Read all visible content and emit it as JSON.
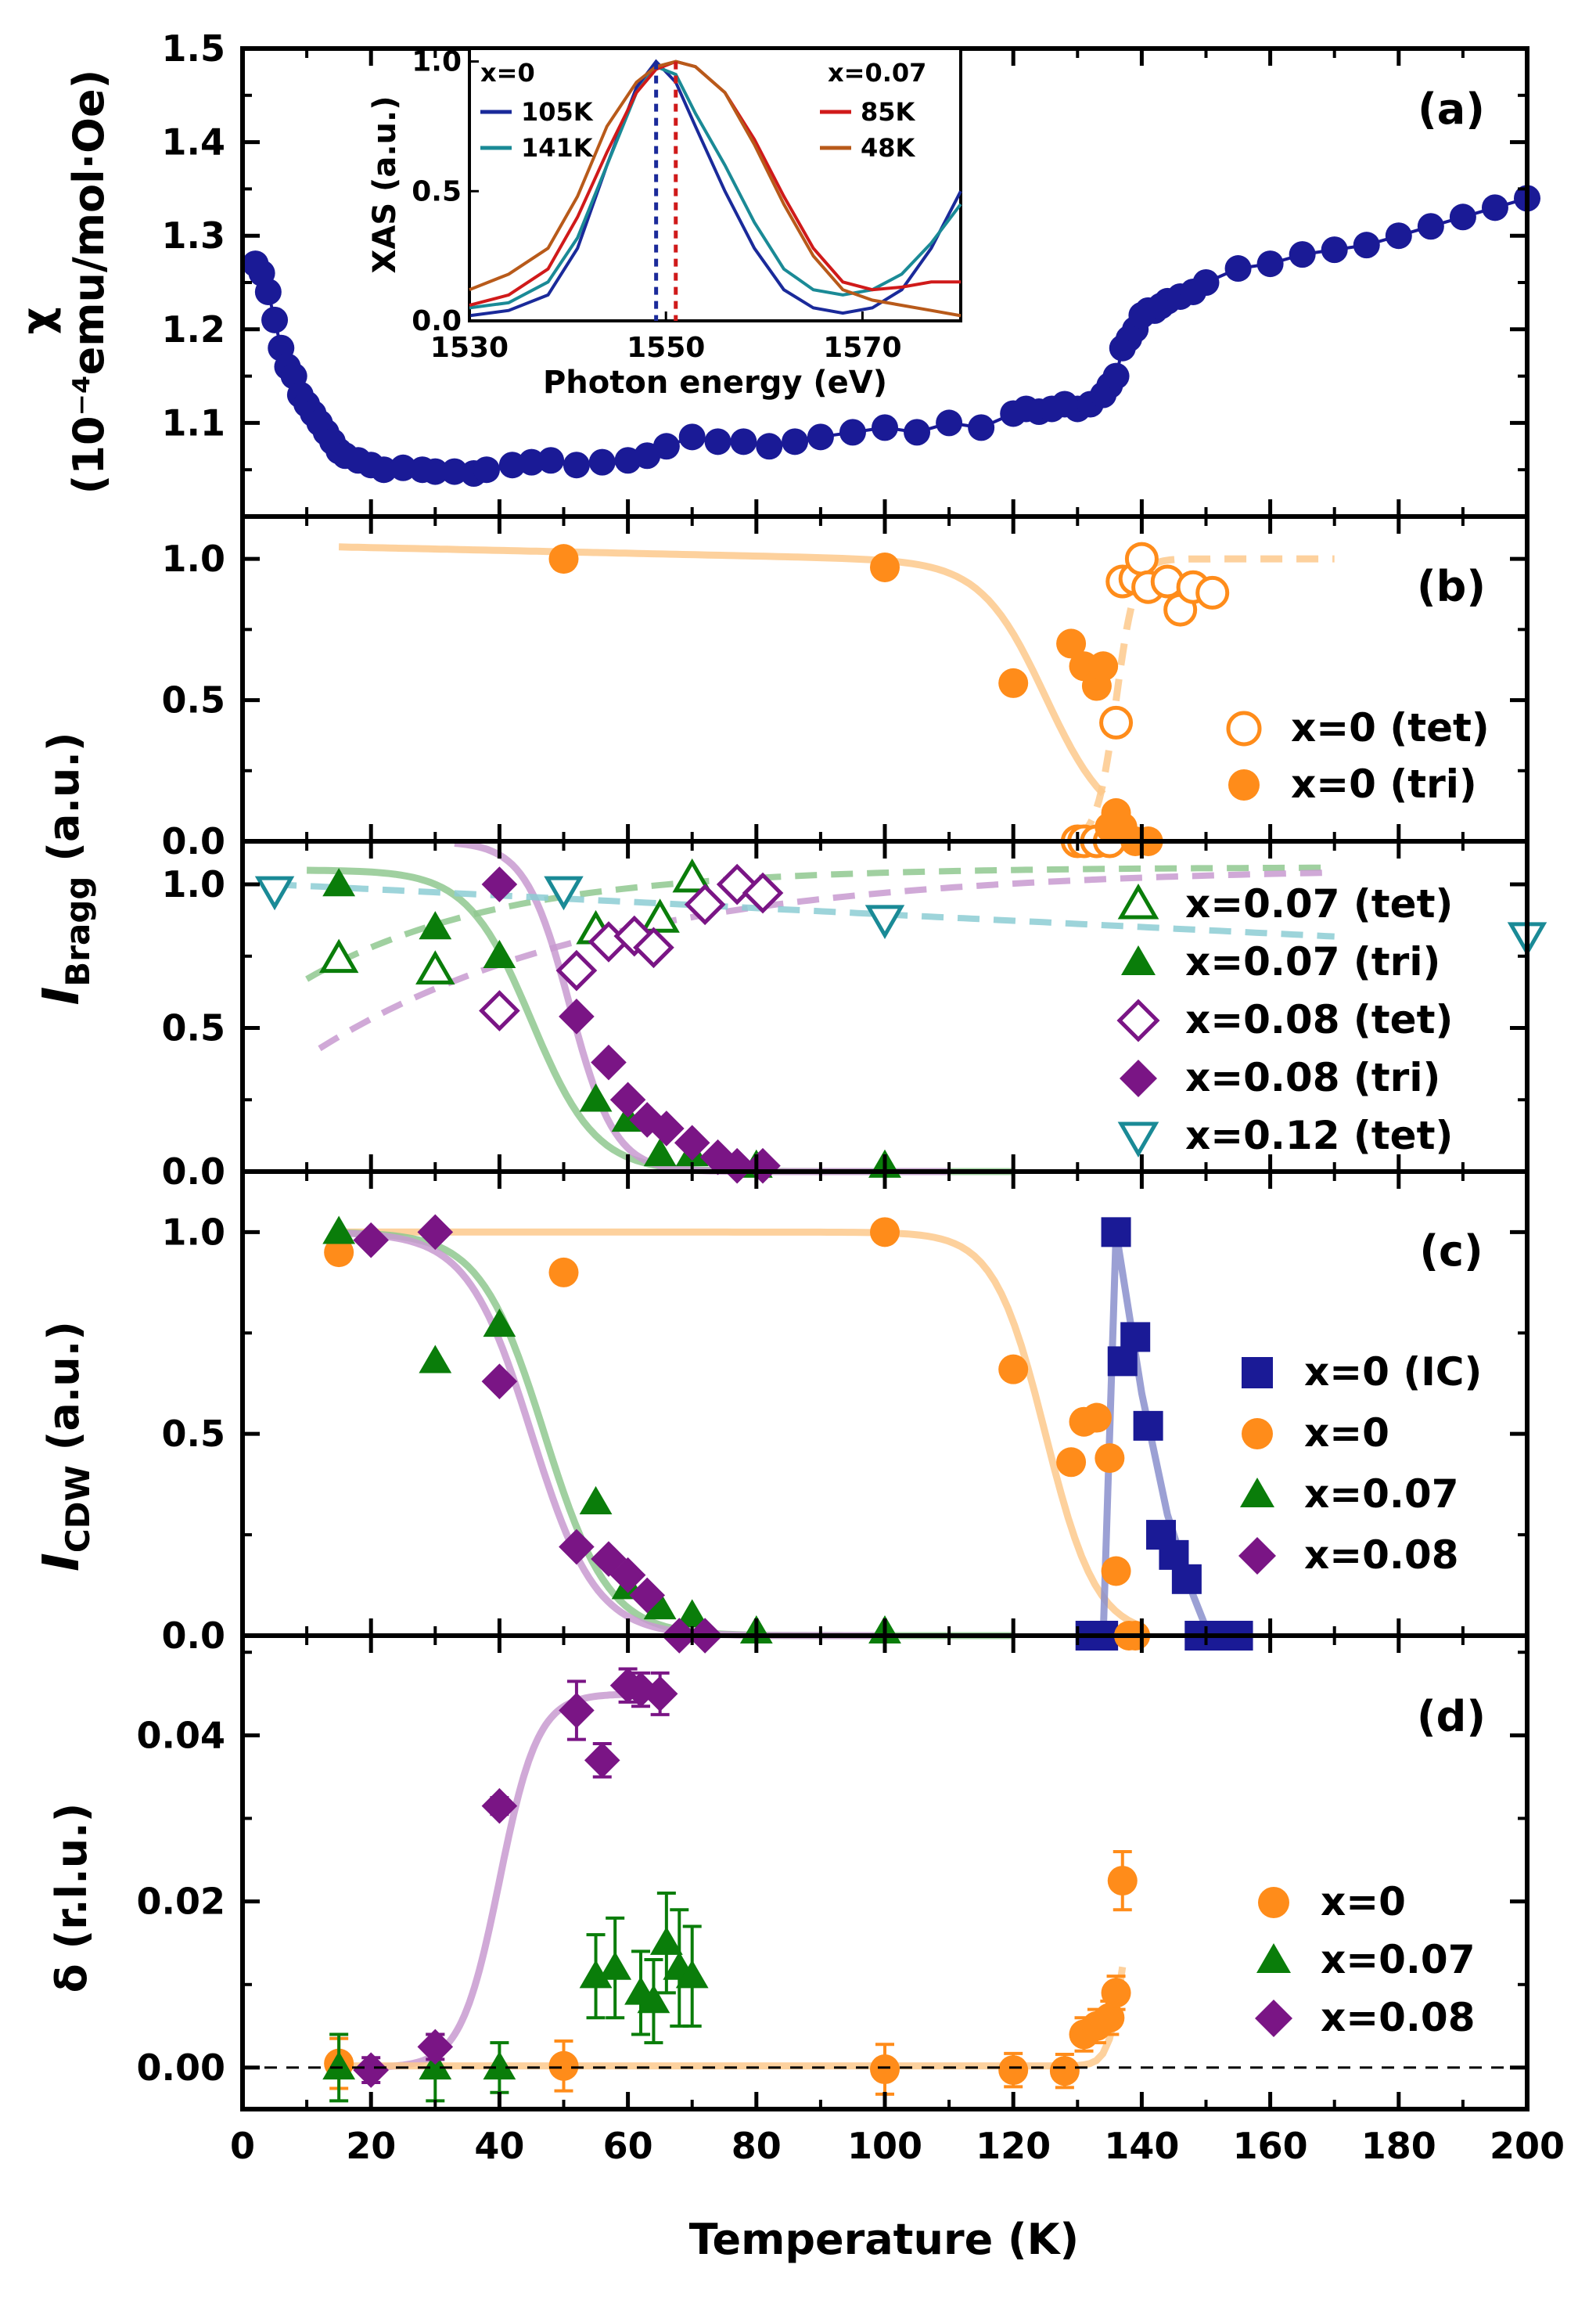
{
  "figure": {
    "xlabel": "Temperature (K)",
    "xlim": [
      0,
      200
    ],
    "xticks": [
      0,
      20,
      40,
      60,
      80,
      100,
      120,
      140,
      160,
      180,
      200
    ]
  },
  "colors": {
    "navy": "#1a1a96",
    "orange": "#ff8c1a",
    "orange_fit": "#fdc98c",
    "green": "#0a7d0a",
    "green_fit": "#8fc88f",
    "purple": "#7a1585",
    "purple_fit": "#c89ad0",
    "teal": "#1a8a96",
    "teal_fit": "#8ccdd4",
    "blue_fit": "#8a8fcc"
  },
  "chart_data": [
    {
      "panel": "a",
      "type": "scatter",
      "label": "(a)",
      "ylabel_symbol": "χ",
      "ylabel": "(10⁻⁴emu/mol·Oe)",
      "ylim": [
        1.0,
        1.5
      ],
      "yticks": [
        "1.1",
        "1.2",
        "1.3",
        "1.4",
        "1.5"
      ],
      "ytick_values": [
        1.1,
        1.2,
        1.3,
        1.4,
        1.5
      ],
      "series": [
        {
          "x": [
            2,
            3,
            4,
            5,
            6,
            7,
            8,
            9,
            10,
            11,
            12,
            13,
            14,
            15,
            16,
            18,
            20,
            22,
            25,
            28,
            30,
            33,
            36,
            38,
            42,
            45,
            48,
            52,
            56,
            60,
            63,
            66,
            70,
            74,
            78,
            82,
            86,
            90,
            95,
            100,
            105,
            110,
            115,
            120,
            122,
            124,
            126,
            128,
            130,
            132,
            134,
            135,
            136,
            137,
            138,
            139,
            140,
            141,
            142,
            143,
            144,
            146,
            148,
            150,
            155,
            160,
            165,
            170,
            175,
            180,
            185,
            190,
            195,
            200
          ],
          "y": [
            1.27,
            1.26,
            1.24,
            1.21,
            1.18,
            1.16,
            1.15,
            1.13,
            1.12,
            1.11,
            1.1,
            1.09,
            1.08,
            1.07,
            1.065,
            1.06,
            1.055,
            1.05,
            1.052,
            1.05,
            1.048,
            1.048,
            1.046,
            1.05,
            1.055,
            1.058,
            1.06,
            1.055,
            1.058,
            1.06,
            1.065,
            1.075,
            1.085,
            1.08,
            1.08,
            1.075,
            1.08,
            1.085,
            1.09,
            1.095,
            1.09,
            1.1,
            1.095,
            1.11,
            1.115,
            1.112,
            1.115,
            1.12,
            1.115,
            1.12,
            1.13,
            1.14,
            1.15,
            1.18,
            1.19,
            1.2,
            1.215,
            1.22,
            1.22,
            1.225,
            1.23,
            1.235,
            1.24,
            1.25,
            1.265,
            1.27,
            1.28,
            1.285,
            1.29,
            1.3,
            1.31,
            1.32,
            1.33,
            1.34
          ]
        }
      ],
      "inset": {
        "xlabel": "Photon energy (eV)",
        "ylabel": "XAS (a.u.)",
        "xlim": [
          1530,
          1580
        ],
        "ylim": [
          0,
          1.05
        ],
        "xticks": [
          "1530",
          "1550",
          "1570"
        ],
        "xtick_values": [
          1530,
          1550,
          1570
        ],
        "yticks": [
          "0.0",
          "0.5",
          "1.0"
        ],
        "ytick_values": [
          0.0,
          0.5,
          1.0
        ],
        "legend_left_title": "x=0",
        "legend_right_title": "x=0.07",
        "peak_lines": [
          1549,
          1551
        ],
        "series": [
          {
            "name": "105K",
            "color": "#1a2a9a",
            "x": [
              1530,
              1534,
              1538,
              1541,
              1544,
              1547,
              1549,
              1551,
              1553,
              1556,
              1559,
              1562,
              1565,
              1568,
              1571,
              1574,
              1577,
              1580
            ],
            "y": [
              0.02,
              0.04,
              0.1,
              0.28,
              0.6,
              0.9,
              1.0,
              0.92,
              0.75,
              0.5,
              0.28,
              0.12,
              0.05,
              0.03,
              0.05,
              0.12,
              0.28,
              0.5
            ]
          },
          {
            "name": "141K",
            "color": "#1a8a96",
            "x": [
              1530,
              1534,
              1538,
              1541,
              1544,
              1547,
              1549,
              1551,
              1553,
              1556,
              1559,
              1562,
              1565,
              1568,
              1571,
              1574,
              1577,
              1580
            ],
            "y": [
              0.05,
              0.07,
              0.15,
              0.32,
              0.6,
              0.88,
              0.98,
              0.95,
              0.8,
              0.6,
              0.38,
              0.2,
              0.12,
              0.1,
              0.12,
              0.18,
              0.3,
              0.45
            ]
          },
          {
            "name": "85K",
            "color": "#d01a1a",
            "x": [
              1530,
              1534,
              1538,
              1541,
              1544,
              1547,
              1549,
              1551,
              1553,
              1556,
              1559,
              1562,
              1565,
              1568,
              1571,
              1574,
              1577,
              1580
            ],
            "y": [
              0.06,
              0.1,
              0.2,
              0.4,
              0.65,
              0.88,
              0.97,
              1.0,
              0.98,
              0.88,
              0.7,
              0.48,
              0.28,
              0.15,
              0.12,
              0.13,
              0.15,
              0.15
            ]
          },
          {
            "name": "48K",
            "color": "#b85a1a",
            "x": [
              1530,
              1534,
              1538,
              1541,
              1544,
              1547,
              1549,
              1551,
              1553,
              1556,
              1559,
              1562,
              1565,
              1568,
              1571,
              1574,
              1577,
              1580
            ],
            "y": [
              0.12,
              0.18,
              0.28,
              0.48,
              0.75,
              0.92,
              0.98,
              1.0,
              0.98,
              0.88,
              0.68,
              0.45,
              0.25,
              0.12,
              0.08,
              0.06,
              0.04,
              0.02
            ]
          }
        ]
      }
    },
    {
      "panel": "b",
      "type": "scatter",
      "label": "(b)",
      "ylabel": "I",
      "ylabel_sub": "Bragg",
      "ylabel_unit": " (a.u.)",
      "ylim": [
        0,
        1.15
      ],
      "yticks": [
        "0.0",
        "0.5",
        "1.0"
      ],
      "ytick_values": [
        0.0,
        0.5,
        1.0
      ],
      "series": [
        {
          "name": "x=0 (tet)",
          "marker": "circle-open",
          "x": [
            130,
            131,
            133,
            135,
            136,
            137,
            139,
            140,
            141,
            144,
            146,
            148,
            151
          ],
          "y": [
            0,
            0,
            0,
            0,
            0.42,
            0.92,
            0.93,
            1.0,
            0.9,
            0.92,
            0.82,
            0.9,
            0.88
          ]
        },
        {
          "name": "x=0 (tri)",
          "marker": "circle",
          "x": [
            50,
            100,
            120,
            129,
            131,
            133,
            134,
            135,
            136,
            137,
            139,
            141
          ],
          "y": [
            1.0,
            0.97,
            0.56,
            0.7,
            0.62,
            0.55,
            0.62,
            0.05,
            0.1,
            0.05,
            0,
            0
          ]
        }
      ]
    },
    {
      "panel": "b2",
      "type": "scatter",
      "ylim": [
        0,
        1.15
      ],
      "yticks": [
        "0.0",
        "0.5",
        "1.0"
      ],
      "ytick_values": [
        0.0,
        0.5,
        1.0
      ],
      "series": [
        {
          "name": "x=0.07 (tet)",
          "marker": "triangle-open",
          "x": [
            15,
            30,
            55,
            65,
            70
          ],
          "y": [
            0.74,
            0.7,
            0.84,
            0.88,
            1.02
          ]
        },
        {
          "name": "x=0.07 (tri)",
          "marker": "triangle",
          "x": [
            15,
            30,
            40,
            55,
            60,
            65,
            70,
            80,
            100
          ],
          "y": [
            1.0,
            0.85,
            0.75,
            0.25,
            0.18,
            0.06,
            0.06,
            0.02,
            0.02
          ]
        },
        {
          "name": "x=0.08 (tet)",
          "marker": "diamond-open",
          "x": [
            40,
            52,
            57,
            61,
            64,
            72,
            77,
            81
          ],
          "y": [
            0.56,
            0.7,
            0.8,
            0.82,
            0.78,
            0.93,
            1.0,
            0.97
          ]
        },
        {
          "name": "x=0.08 (tri)",
          "marker": "diamond",
          "x": [
            40,
            52,
            57,
            60,
            63,
            66,
            70,
            74,
            77,
            81
          ],
          "y": [
            1.0,
            0.54,
            0.38,
            0.25,
            0.18,
            0.15,
            0.1,
            0.05,
            0.02,
            0.02
          ]
        },
        {
          "name": "x=0.12 (tet)",
          "marker": "triangle-down-open",
          "x": [
            5,
            50,
            100,
            200
          ],
          "y": [
            0.98,
            0.98,
            0.88,
            0.82
          ]
        }
      ]
    },
    {
      "panel": "c",
      "type": "scatter",
      "label": "(c)",
      "ylabel": "I",
      "ylabel_sub": "CDW",
      "ylabel_unit": " (a.u.)",
      "ylim": [
        0,
        1.15
      ],
      "yticks": [
        "0.0",
        "0.5",
        "1.0"
      ],
      "ytick_values": [
        0.0,
        0.5,
        1.0
      ],
      "series": [
        {
          "name": "x=0 (IC)",
          "marker": "square",
          "x": [
            132,
            134,
            136,
            137,
            139,
            141,
            143,
            145,
            147,
            149,
            151,
            155
          ],
          "y": [
            0,
            0,
            1.0,
            0.68,
            0.74,
            0.52,
            0.25,
            0.2,
            0.14,
            0,
            0,
            0
          ]
        },
        {
          "name": "x=0",
          "marker": "circle",
          "x": [
            15,
            50,
            100,
            120,
            129,
            131,
            133,
            135,
            136,
            138,
            139
          ],
          "y": [
            0.95,
            0.9,
            1.0,
            0.66,
            0.43,
            0.53,
            0.54,
            0.44,
            0.16,
            0,
            0
          ]
        },
        {
          "name": "x=0.07",
          "marker": "triangle",
          "x": [
            15,
            30,
            40,
            55,
            60,
            65,
            70,
            80,
            100
          ],
          "y": [
            1.0,
            0.68,
            0.77,
            0.33,
            0.12,
            0.07,
            0.05,
            0.01,
            0.01
          ]
        },
        {
          "name": "x=0.08",
          "marker": "diamond",
          "x": [
            20,
            30,
            40,
            52,
            57,
            60,
            63,
            68,
            72
          ],
          "y": [
            0.98,
            1.0,
            0.63,
            0.22,
            0.19,
            0.15,
            0.1,
            0,
            0
          ]
        }
      ]
    },
    {
      "panel": "d",
      "type": "scatter",
      "label": "(d)",
      "ylabel": "δ (r.l.u.)",
      "ylim": [
        -0.005,
        0.052
      ],
      "yticks": [
        "0.00",
        "0.02",
        "0.04"
      ],
      "ytick_values": [
        0.0,
        0.02,
        0.04
      ],
      "series": [
        {
          "name": "x=0",
          "marker": "circle",
          "x": [
            15,
            50,
            100,
            120,
            128,
            131,
            133,
            135,
            136,
            137
          ],
          "y": [
            0.0005,
            0.0002,
            -0.0002,
            -0.0003,
            -0.0004,
            0.004,
            0.005,
            0.006,
            0.009,
            0.0225
          ],
          "err": [
            0.003,
            0.003,
            0.003,
            0.002,
            0.002,
            0.002,
            0.002,
            0.002,
            0.002,
            0.0035
          ]
        },
        {
          "name": "x=0.07",
          "marker": "triangle",
          "x": [
            15,
            30,
            40,
            55,
            58,
            62,
            64,
            66,
            68,
            70
          ],
          "y": [
            0.0,
            0.0,
            0.0,
            0.011,
            0.012,
            0.009,
            0.008,
            0.015,
            0.012,
            0.011
          ],
          "err": [
            0.004,
            0.004,
            0.003,
            0.005,
            0.006,
            0.005,
            0.005,
            0.006,
            0.007,
            0.006
          ]
        },
        {
          "name": "x=0.08",
          "marker": "diamond",
          "x": [
            20,
            30,
            40,
            52,
            56,
            60,
            62,
            65
          ],
          "y": [
            -0.0003,
            0.0025,
            0.0315,
            0.043,
            0.037,
            0.046,
            0.0455,
            0.045
          ],
          "err": [
            0.0015,
            0.0015,
            0.001,
            0.0035,
            0.002,
            0.002,
            0.002,
            0.0025
          ]
        }
      ]
    }
  ]
}
